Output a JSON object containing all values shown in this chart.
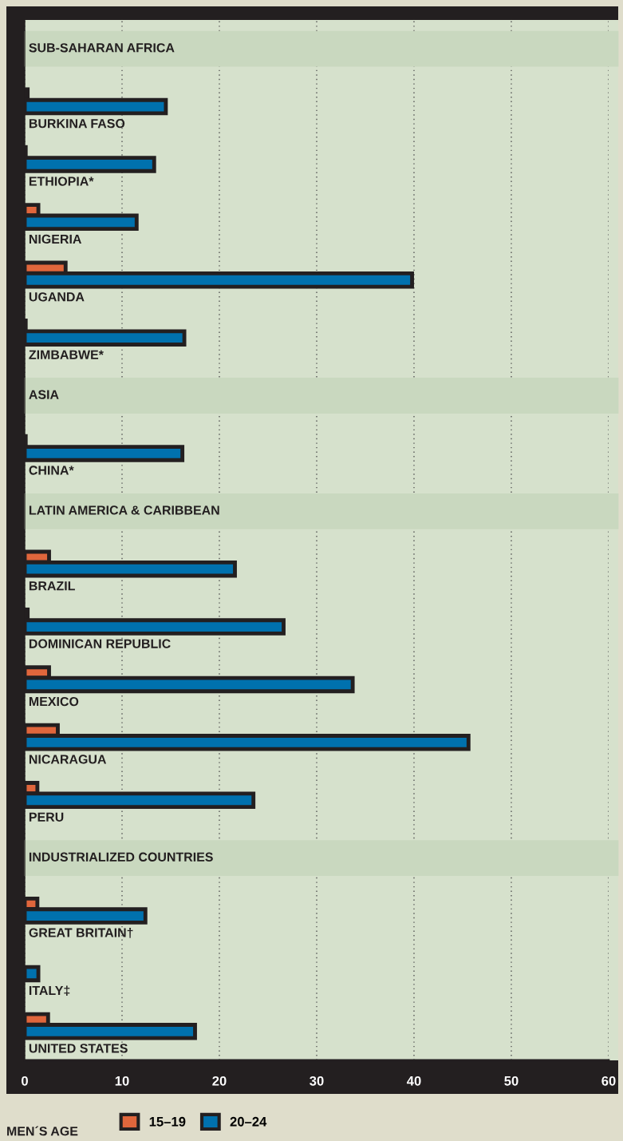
{
  "chart_data": {
    "type": "bar",
    "orientation": "horizontal",
    "categories": [
      "SUB-SAHARAN AFRICA",
      "BURKINA FASO",
      "ETHIOPIA*",
      "NIGERIA",
      "UGANDA",
      "ZIMBABWE*",
      "ASIA",
      "CHINA*",
      "LATIN AMERICA & CARIBBEAN",
      "BRAZIL",
      "DOMINICAN REPUBLIC",
      "MEXICO",
      "NICARAGUA",
      "PERU",
      "INDUSTRIALIZED COUNTRIES",
      "GREAT BRITAIN†",
      "ITALY‡",
      "UNITED STATES"
    ],
    "series": [
      {
        "name": "15–19",
        "color": "#e0663c",
        "values": [
          null,
          0.3,
          0.1,
          1.4,
          4.2,
          0.1,
          null,
          0.1,
          null,
          2.5,
          0.3,
          2.5,
          3.4,
          1.3,
          null,
          1.3,
          null,
          2.4
        ],
        "colors": [
          "#e0663c",
          "#e0663c",
          "#ffffff",
          "#e0663c",
          "#e0663c",
          "#ffffff",
          "#e0663c",
          "#ffffff",
          "#e0663c",
          "#e0663c",
          "#e0663c",
          "#e0663c",
          "#e0663c",
          "#e0663c",
          "#e0663c",
          "#e0663c",
          "#e0663c",
          "#e0663c"
        ]
      },
      {
        "name": "20–24",
        "color": "#0071ae",
        "values": [
          null,
          14.5,
          13.3,
          11.5,
          39.8,
          16.4,
          null,
          16.2,
          null,
          21.6,
          26.6,
          33.7,
          45.6,
          23.5,
          null,
          12.4,
          1.4,
          17.5
        ]
      }
    ],
    "xlim": [
      0,
      60
    ],
    "xticks": [
      0,
      10,
      20,
      30,
      40,
      50,
      60
    ],
    "bands": [
      {
        "axis": "y",
        "from": "SUB-SAHARAN AFRICA",
        "to": "SUB-SAHARAN AFRICA",
        "color": "#c9d8bf"
      },
      {
        "axis": "y",
        "from": "ASIA",
        "to": "ASIA",
        "color": "#c9d8bf"
      },
      {
        "axis": "y",
        "from": "LATIN AMERICA & CARIBBEAN",
        "to": "LATIN AMERICA & CARIBBEAN",
        "color": "#c9d8bf"
      },
      {
        "axis": "y",
        "from": "INDUSTRIALIZED COUNTRIES",
        "to": "INDUSTRIALIZED COUNTRIES",
        "color": "#c9d8bf"
      }
    ],
    "grid": "x",
    "legend": "bottom",
    "legend_title": "MEN´S AGE"
  }
}
